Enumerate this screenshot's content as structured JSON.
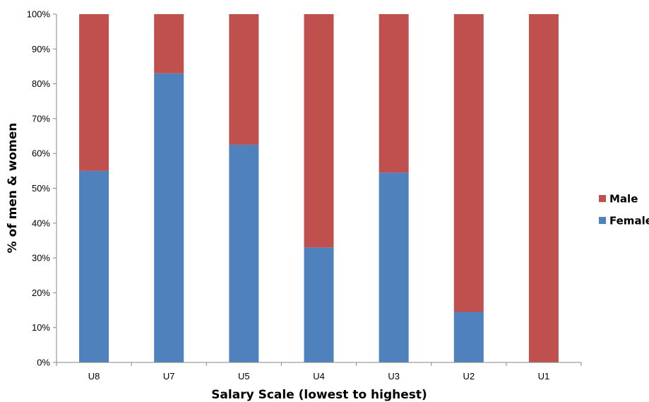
{
  "chart_data": {
    "type": "bar",
    "stacked": true,
    "categories": [
      "U8",
      "U7",
      "U5",
      "U4",
      "U3",
      "U2",
      "U1"
    ],
    "series": [
      {
        "name": "Female",
        "color": "#4F81BD",
        "values": [
          55,
          83,
          62.5,
          33,
          54.5,
          14.5,
          0
        ]
      },
      {
        "name": "Male",
        "color": "#C0504D",
        "values": [
          45,
          17,
          37.5,
          67,
          45.5,
          85.5,
          100
        ]
      }
    ],
    "xlabel": "Salary Scale (lowest to highest)",
    "ylabel": "% of men & women",
    "ylim": [
      0,
      100
    ],
    "yticks": [
      "0%",
      "10%",
      "20%",
      "30%",
      "40%",
      "50%",
      "60%",
      "70%",
      "80%",
      "90%",
      "100%"
    ],
    "legend": {
      "position": "right",
      "order": [
        "Male",
        "Female"
      ]
    },
    "grid": false
  }
}
